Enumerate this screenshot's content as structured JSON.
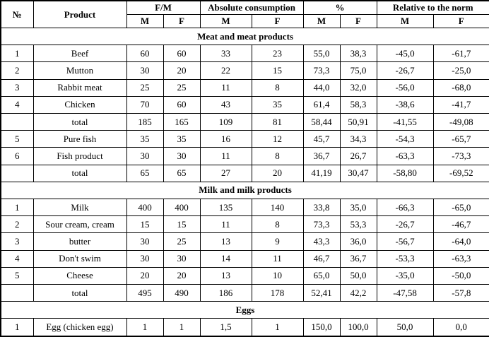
{
  "table": {
    "header": {
      "col_no": "№",
      "col_product": "Product",
      "col_fm": "F/M",
      "col_abs": "Absolute consumption",
      "col_pct": "%",
      "col_rel": "Relative to the norm",
      "sub_m": "M",
      "sub_f": "F"
    },
    "sections": [
      {
        "title": "Meat and meat products",
        "rows": [
          {
            "total": false,
            "cells": [
              "1",
              "Beef",
              "60",
              "60",
              "33",
              "23",
              "55,0",
              "38,3",
              "-45,0",
              "-61,7"
            ]
          },
          {
            "total": false,
            "cells": [
              "2",
              "Mutton",
              "30",
              "20",
              "22",
              "15",
              "73,3",
              "75,0",
              "-26,7",
              "-25,0"
            ]
          },
          {
            "total": false,
            "cells": [
              "3",
              "Rabbit meat",
              "25",
              "25",
              "11",
              "8",
              "44,0",
              "32,0",
              "-56,0",
              "-68,0"
            ]
          },
          {
            "total": false,
            "cells": [
              "4",
              "Chicken",
              "70",
              "60",
              "43",
              "35",
              "61,4",
              "58,3",
              "-38,6",
              "-41,7"
            ]
          },
          {
            "total": true,
            "cells": [
              "",
              "total",
              "185",
              "165",
              "109",
              "81",
              "58,44",
              "50,91",
              "-41,55",
              "-49,08"
            ]
          },
          {
            "total": false,
            "cells": [
              "5",
              "Pure fish",
              "35",
              "35",
              "16",
              "12",
              "45,7",
              "34,3",
              "-54,3",
              "-65,7"
            ]
          },
          {
            "total": false,
            "cells": [
              "6",
              "Fish product",
              "30",
              "30",
              "11",
              "8",
              "36,7",
              "26,7",
              "-63,3",
              "-73,3"
            ]
          },
          {
            "total": true,
            "cells": [
              "",
              "total",
              "65",
              "65",
              "27",
              "20",
              "41,19",
              "30,47",
              "-58,80",
              "-69,52"
            ]
          }
        ]
      },
      {
        "title": "Milk and milk products",
        "rows": [
          {
            "total": false,
            "cells": [
              "1",
              "Milk",
              "400",
              "400",
              "135",
              "140",
              "33,8",
              "35,0",
              "-66,3",
              "-65,0"
            ]
          },
          {
            "total": false,
            "cells": [
              "2",
              "Sour cream, cream",
              "15",
              "15",
              "11",
              "8",
              "73,3",
              "53,3",
              "-26,7",
              "-46,7"
            ]
          },
          {
            "total": false,
            "cells": [
              "3",
              "butter",
              "30",
              "25",
              "13",
              "9",
              "43,3",
              "36,0",
              "-56,7",
              "-64,0"
            ]
          },
          {
            "total": false,
            "cells": [
              "4",
              "Don't swim",
              "30",
              "30",
              "14",
              "11",
              "46,7",
              "36,7",
              "-53,3",
              "-63,3"
            ]
          },
          {
            "total": false,
            "cells": [
              "5",
              "Cheese",
              "20",
              "20",
              "13",
              "10",
              "65,0",
              "50,0",
              "-35,0",
              "-50,0"
            ]
          },
          {
            "total": true,
            "cells": [
              "",
              "total",
              "495",
              "490",
              "186",
              "178",
              "52,41",
              "42,2",
              "-47,58",
              "-57,8"
            ]
          }
        ]
      },
      {
        "title": "Eggs",
        "rows": [
          {
            "total": false,
            "cells": [
              "1",
              "Egg (chicken egg)",
              "1",
              "1",
              "1,5",
              "1",
              "150,0",
              "100,0",
              "50,0",
              "0,0"
            ]
          }
        ]
      }
    ]
  }
}
